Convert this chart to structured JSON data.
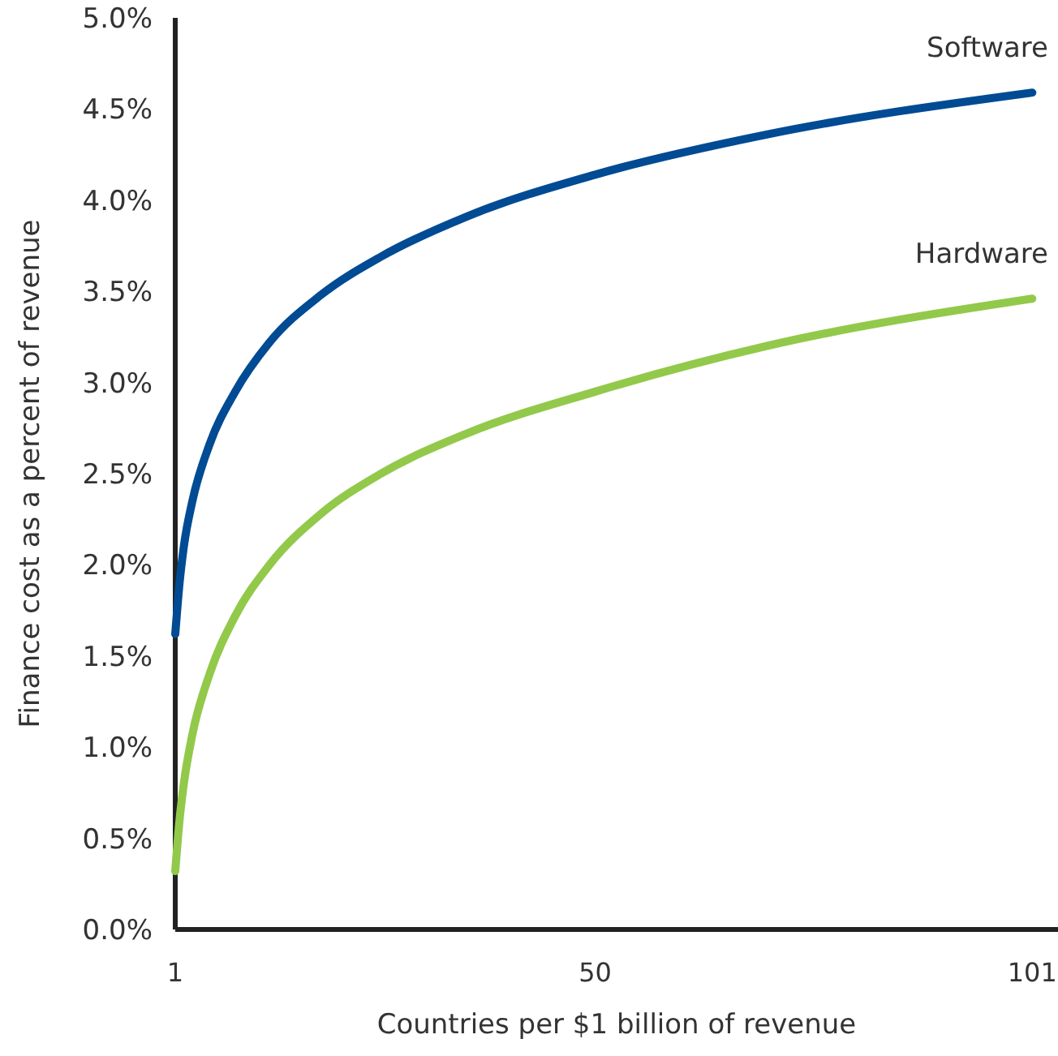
{
  "chart_data": {
    "type": "line",
    "xlabel": "Countries per $1 billion of revenue",
    "ylabel": "Finance cost as a percent of revenue",
    "xlim": [
      1,
      104
    ],
    "xticks": [
      1,
      50,
      101
    ],
    "ylim": [
      0,
      5
    ],
    "yticks": [
      {
        "value": 0,
        "label": "0.0%"
      },
      {
        "value": 0.5,
        "label": "0.5%"
      },
      {
        "value": 1,
        "label": "1.0%"
      },
      {
        "value": 1.5,
        "label": "1.5%"
      },
      {
        "value": 2,
        "label": "2.0%"
      },
      {
        "value": 2.5,
        "label": "2.5%"
      },
      {
        "value": 3,
        "label": "3.0%"
      },
      {
        "value": 3.5,
        "label": "3.5%"
      },
      {
        "value": 4,
        "label": "4.0%"
      },
      {
        "value": 4.5,
        "label": "4.5%"
      },
      {
        "value": 5,
        "label": "5.0%"
      }
    ],
    "grid": false,
    "marker": "none",
    "line_style": "solid",
    "series": [
      {
        "name": "Software",
        "color": "#004b93",
        "x": [
          1,
          1.5,
          2,
          3,
          5,
          8,
          12,
          18,
          25,
          35,
          50,
          70,
          101
        ],
        "values": [
          1.62,
          1.9,
          2.1,
          2.35,
          2.66,
          2.95,
          3.22,
          3.48,
          3.69,
          3.91,
          4.14,
          4.36,
          4.59
        ]
      },
      {
        "name": "Hardware",
        "color": "#92c94a",
        "x": [
          1,
          1.5,
          2,
          3,
          5,
          8,
          12,
          18,
          25,
          35,
          50,
          70,
          101
        ],
        "values": [
          0.32,
          0.6,
          0.8,
          1.07,
          1.4,
          1.72,
          2.0,
          2.28,
          2.5,
          2.72,
          2.95,
          3.2,
          3.46
        ]
      }
    ]
  }
}
